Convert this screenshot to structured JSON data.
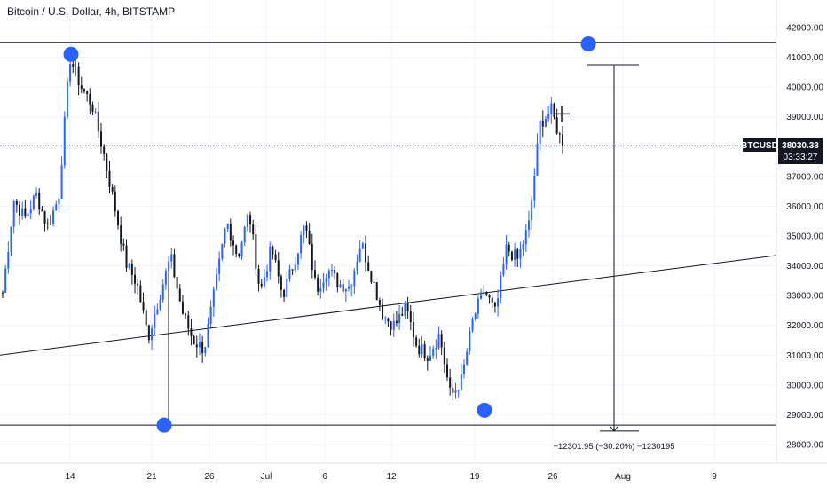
{
  "header": {
    "title": "Bitcoin / U.S. Dollar, 4h, BITSTAMP"
  },
  "colors": {
    "up_candle": "#2962ff",
    "down_candle": "#131722",
    "line": "#131722",
    "marker": "#2962ff",
    "grid": "#f0f3fa",
    "axis_border": "#e0e3eb",
    "current_price_bg": "#131722"
  },
  "price_scale": {
    "ticks": [
      "42000.00",
      "41000.00",
      "40000.00",
      "39000.00",
      "38000.00",
      "37000.00",
      "36000.00",
      "35000.00",
      "34000.00",
      "33000.00",
      "32000.00",
      "31000.00",
      "30000.00",
      "29000.00",
      "28000.00"
    ],
    "range": [
      27300,
      42800
    ]
  },
  "time_scale": {
    "ticks": [
      "14",
      "21",
      "26",
      "Jul",
      "6",
      "12",
      "19",
      "26",
      "Aug",
      "9"
    ]
  },
  "current_price": {
    "symbol": "BTCUSD",
    "value": "38030.33",
    "countdown": "03:33:27"
  },
  "measure": {
    "label": "−12301.95 (−30.20%) −1230195"
  },
  "chart_data": {
    "type": "line",
    "title": "Bitcoin / U.S. Dollar, 4h, BITSTAMP",
    "xlabel": "",
    "ylabel": "",
    "ylim": [
      27300,
      42800
    ],
    "x_ticks": [
      "14",
      "21",
      "26",
      "Jul",
      "6",
      "12",
      "19",
      "26",
      "Aug",
      "9"
    ],
    "series": [
      {
        "values": [
          33100,
          36200,
          35600,
          36400,
          35300,
          36300,
          41000,
          40000,
          39400,
          37800,
          36000,
          34100,
          33400,
          31600,
          33000,
          34300,
          32500,
          31500,
          31200,
          33300,
          35500,
          34300,
          35800,
          33100,
          34600,
          33000,
          34100,
          35400,
          33200,
          33900,
          33400,
          33300,
          34800,
          33600,
          32300,
          32000,
          32600,
          31300,
          31000,
          31700,
          29600,
          30200,
          32200,
          33200,
          32400,
          34600,
          34200,
          35400,
          38800,
          39200,
          38030
        ]
      }
    ],
    "horizontal_lines": [
      41500,
      28650
    ],
    "trendline": {
      "start": 31000,
      "end": 34350
    },
    "markers": [
      41100,
      28650,
      29150,
      41450
    ],
    "measure_range": [
      40750,
      28450
    ]
  }
}
